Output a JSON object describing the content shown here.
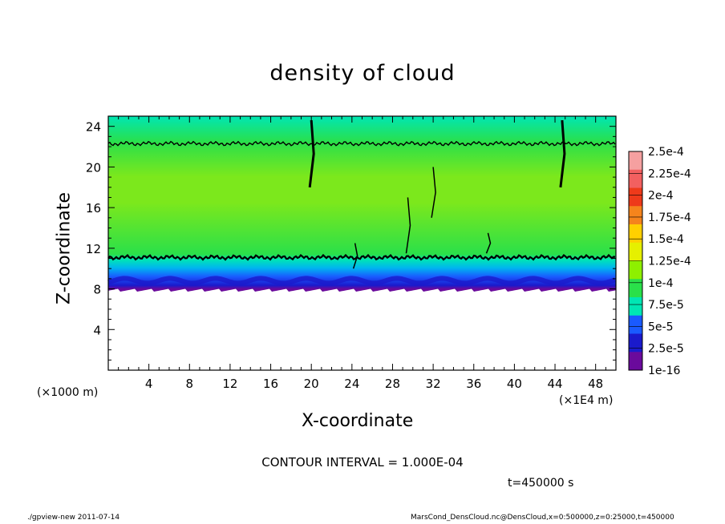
{
  "chart_data": {
    "type": "heatmap",
    "title": "density of cloud",
    "xlabel": "X-coordinate",
    "ylabel": "Z-coordinate",
    "x_unit_label": "(×1E4 m)",
    "y_unit_label": "(×1000 m)",
    "xlim": [
      0,
      50
    ],
    "ylim": [
      0,
      25
    ],
    "x_ticks": [
      "4",
      "8",
      "12",
      "16",
      "20",
      "24",
      "28",
      "32",
      "36",
      "40",
      "44",
      "48"
    ],
    "y_ticks": [
      "4",
      "8",
      "12",
      "16",
      "20",
      "24"
    ],
    "x_tick_values": [
      4,
      8,
      12,
      16,
      20,
      24,
      28,
      32,
      36,
      40,
      44,
      48
    ],
    "y_tick_values": [
      4,
      8,
      12,
      16,
      20,
      24
    ],
    "colorbar_labels": [
      "2.5e-4",
      "2.25e-4",
      "2e-4",
      "1.75e-4",
      "1.5e-4",
      "1.25e-4",
      "1e-4",
      "7.5e-5",
      "5e-5",
      "2.5e-5",
      "1e-16"
    ],
    "colorbar_colors": [
      "#f5a0a0",
      "#f26060",
      "#ee3a1a",
      "#f5841c",
      "#ffd000",
      "#e6f000",
      "#8ef000",
      "#2ae04a",
      "#00e6b4",
      "#1a5aff",
      "#1a1acc",
      "#6a0a9c"
    ],
    "profile": [
      {
        "z": 8.0,
        "value": 1e-16
      },
      {
        "z": 8.6,
        "value": 2.5e-05
      },
      {
        "z": 9.4,
        "value": 5e-05
      },
      {
        "z": 10.2,
        "value": 7.5e-05
      },
      {
        "z": 11.2,
        "value": 0.0001
      },
      {
        "z": 16.0,
        "value": 0.000125
      },
      {
        "z": 19.0,
        "value": 0.000125
      },
      {
        "z": 22.4,
        "value": 0.0001
      },
      {
        "z": 25.0,
        "value": 7.5e-05
      }
    ],
    "contour_levels": [
      0.0001
    ],
    "contour_interval": "CONTOUR INTERVAL = 1.000E-04",
    "time_label": "t=450000 s"
  },
  "footer": {
    "left": "./gpview-new  2011-07-14",
    "right": "MarsCond_DensCloud.nc@DensCloud,x=0:500000,z=0:25000,t=450000"
  }
}
